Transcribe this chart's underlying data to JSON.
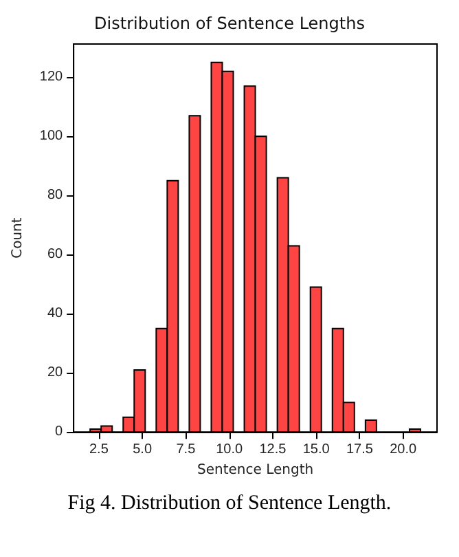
{
  "chart_data": {
    "type": "histogram",
    "title": "Distribution of Sentence Lengths",
    "xlabel": "Sentence Length",
    "ylabel": "Count",
    "bins": [
      2,
      2.6333,
      3.2667,
      3.9,
      4.5333,
      5.1667,
      5.8,
      6.4333,
      7.0667,
      7.7,
      8.3333,
      8.9667,
      9.6,
      10.2333,
      10.8667,
      11.5,
      12.1333,
      12.7667,
      13.4,
      14.0333,
      14.6667,
      15.3,
      15.9333,
      16.5667,
      17.2,
      17.8333,
      18.4667,
      19.1,
      19.7333,
      20.3667,
      21
    ],
    "values": [
      1,
      2,
      0,
      5,
      21,
      0,
      35,
      85,
      0,
      107,
      0,
      125,
      122,
      0,
      117,
      100,
      0,
      86,
      63,
      0,
      49,
      0,
      35,
      10,
      0,
      4,
      0,
      0,
      0,
      1
    ],
    "color": "#ff4444",
    "xlim": [
      1.05,
      21.95
    ],
    "xticks": [
      {
        "value": 2.5,
        "label": "2.5"
      },
      {
        "value": 5,
        "label": "5.0"
      },
      {
        "value": 7.5,
        "label": "7.5"
      },
      {
        "value": 10,
        "label": "10.0"
      },
      {
        "value": 12.5,
        "label": "12.5"
      },
      {
        "value": 15,
        "label": "15.0"
      },
      {
        "value": 17.5,
        "label": "17.5"
      },
      {
        "value": 20,
        "label": "20.0"
      }
    ],
    "ylim": [
      0,
      131.25
    ],
    "yticks": [
      0,
      20,
      40,
      60,
      80,
      100,
      120
    ],
    "grid": false,
    "annotations": [
      "Fig 4. Distribution of Sentence Length."
    ]
  }
}
